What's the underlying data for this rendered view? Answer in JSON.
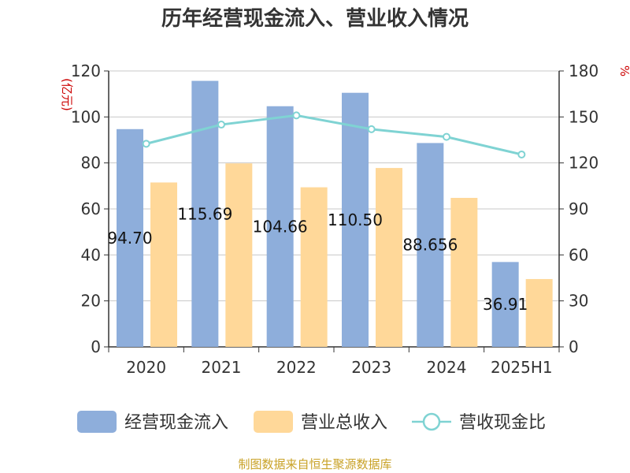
{
  "chart_data": {
    "type": "bar",
    "title": "历年经营现金流入、营业收入情况",
    "categories": [
      "2020",
      "2021",
      "2022",
      "2023",
      "2024",
      "2025H1"
    ],
    "series": [
      {
        "name": "经营现金流入",
        "type": "bar",
        "axis": "left",
        "values": [
          94.7,
          115.69,
          104.66,
          110.5,
          88.656,
          36.91
        ],
        "labels": [
          "94.70",
          "115.69",
          "104.66",
          "110.50",
          "88.656",
          "36.91"
        ]
      },
      {
        "name": "营业总收入",
        "type": "bar",
        "axis": "left",
        "values": [
          71.5,
          79.8,
          69.4,
          77.8,
          64.8,
          29.5
        ]
      },
      {
        "name": "营收现金比",
        "type": "line",
        "axis": "right",
        "values": [
          132.5,
          145.0,
          151.0,
          142.0,
          137.0,
          125.5
        ]
      }
    ],
    "left_axis": {
      "unit": "(亿元)",
      "ylim": [
        0,
        120
      ],
      "ticks": [
        "0",
        "20",
        "40",
        "60",
        "80",
        "100",
        "120"
      ]
    },
    "right_axis": {
      "unit": "%",
      "ylim": [
        0,
        180
      ],
      "ticks": [
        "0",
        "30",
        "60",
        "90",
        "120",
        "150",
        "180"
      ]
    },
    "grid": true,
    "legend_position": "bottom",
    "colors": {
      "cash_bar": "#8eaedb",
      "revenue_bar": "#ffd899",
      "ratio_line": "#7fd3d3",
      "axis": "#333333",
      "grid": "#c8c8c8"
    }
  },
  "source": "制图数据来自恒生聚源数据库"
}
